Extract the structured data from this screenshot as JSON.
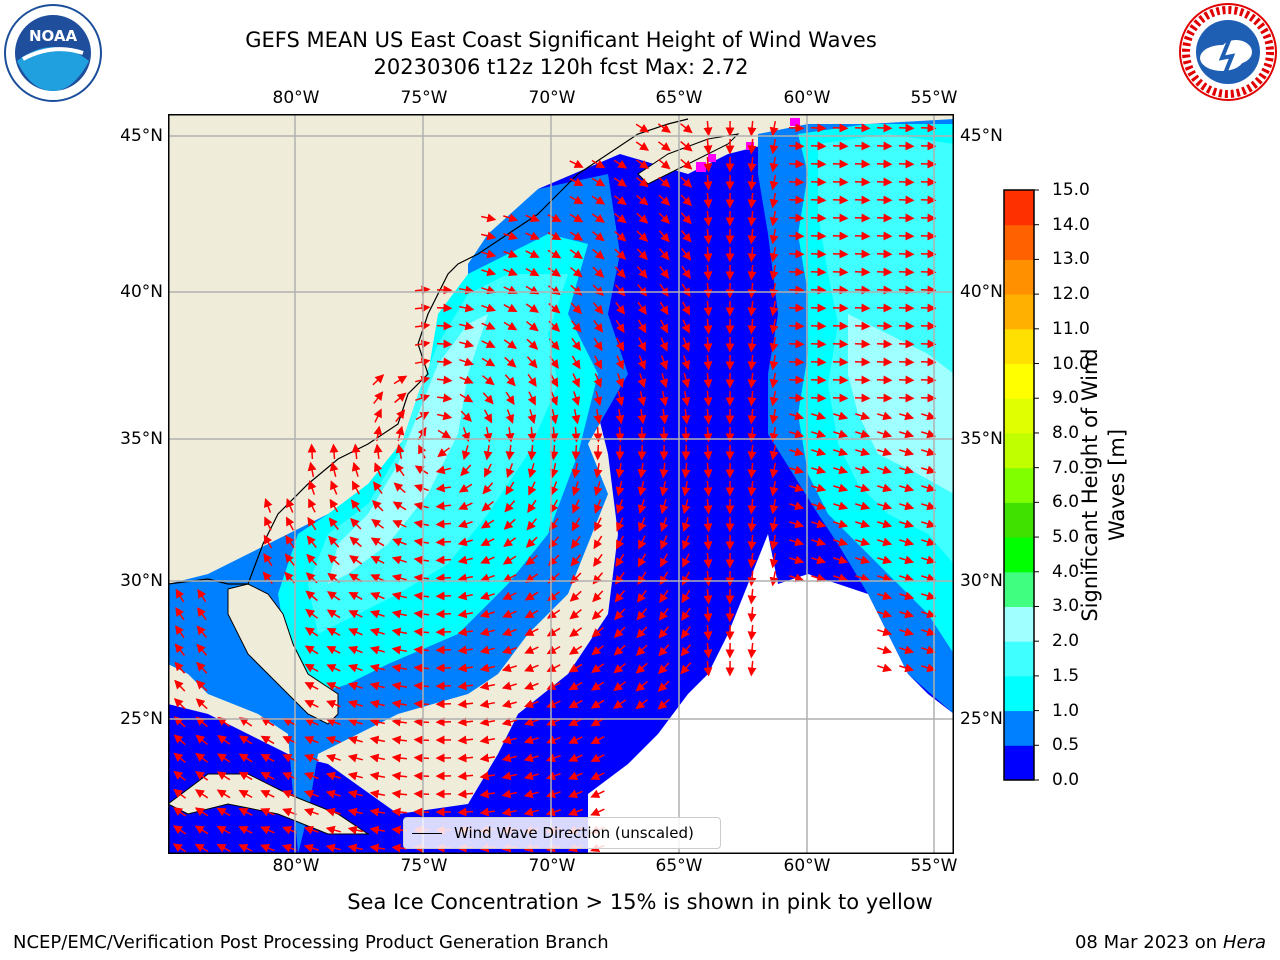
{
  "header": {
    "title_line1": "GEFS MEAN US East Coast Significant Height of Wind Waves",
    "title_line2": "20230306 t12z 120h fcst   Max: 2.72"
  },
  "logos": {
    "left": {
      "name": "noaa-logo",
      "text": "NOAA"
    },
    "right": {
      "name": "nws-logo",
      "text": "NATIONAL WEATHER SERVICE"
    }
  },
  "map": {
    "lon_labels": [
      "80°W",
      "75°W",
      "70°W",
      "65°W",
      "60°W",
      "55°W"
    ],
    "lat_labels": [
      "45°N",
      "40°N",
      "35°N",
      "30°N",
      "25°N"
    ],
    "legend_label": "Wind Wave Direction (unscaled)",
    "colors": {
      "land": "#efedd9",
      "no_data": "#ffffff",
      "grid": "#b0b0b0",
      "arrows": "#ff0000",
      "ice": "#ff00ff"
    }
  },
  "colorbar": {
    "label_line1": "Significant Height of Wind",
    "label_line2": "Waves [m]",
    "ticks": [
      "15.0",
      "14.0",
      "13.0",
      "12.0",
      "11.0",
      "10.0",
      "9.0",
      "8.0",
      "7.0",
      "6.0",
      "5.0",
      "4.0",
      "3.0",
      "2.0",
      "1.5",
      "1.0",
      "0.5",
      "0.0"
    ],
    "colors_bottom_to_top": [
      "#0000ff",
      "#0080ff",
      "#00ffff",
      "#40ffff",
      "#a0ffff",
      "#40ff80",
      "#00ff00",
      "#40e000",
      "#80ff00",
      "#c0ff00",
      "#e0ff00",
      "#ffff00",
      "#ffe000",
      "#ffb000",
      "#ff9000",
      "#ff6000",
      "#ff3000"
    ]
  },
  "caption": "Sea Ice Concentration > 15% is shown in pink to yellow",
  "footer": {
    "left": "NCEP/EMC/Verification Post Processing Product Generation Branch",
    "right_date": "08 Mar 2023 on",
    "right_host": "Hera"
  }
}
